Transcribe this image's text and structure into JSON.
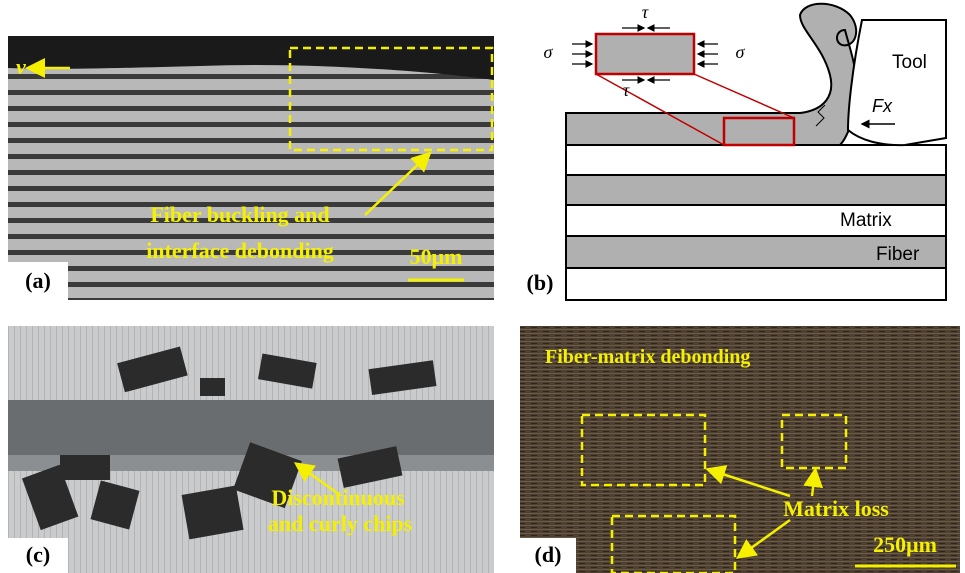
{
  "panels": [
    {
      "label": "(a)",
      "texts": [
        "v",
        "Fiber buckling and",
        "interface debonding",
        "50μm"
      ]
    },
    {
      "label": "(b)",
      "texts": [
        "τ",
        "σ",
        "σ",
        "τ",
        "Tool",
        "Fx",
        "Matrix",
        "Fiber"
      ]
    },
    {
      "label": "(c)",
      "texts": [
        "Discontinuous",
        "and curly chips"
      ]
    },
    {
      "label": "(d)",
      "texts": [
        "Fiber-matrix debonding",
        "Matrix loss",
        "250μm"
      ]
    }
  ]
}
